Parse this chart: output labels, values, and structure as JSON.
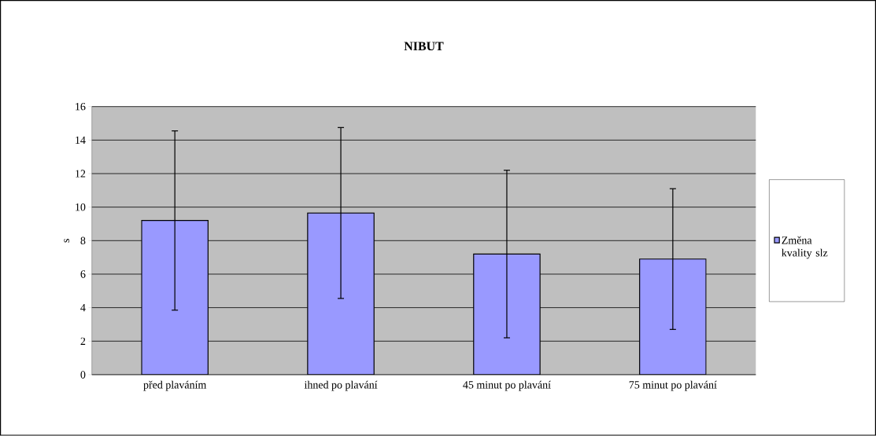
{
  "chart_data": {
    "type": "bar",
    "title": "NIBUT",
    "ylabel": "s",
    "categories": [
      "před plaváním",
      "ihned po plavání",
      "45 minut po plavání",
      "75 minut po plavání"
    ],
    "series": [
      {
        "name": "Změna kvality slz",
        "color": "#9999ff",
        "values": [
          9.2,
          9.65,
          7.2,
          6.9
        ],
        "errors": [
          5.35,
          5.1,
          5.0,
          4.2
        ]
      }
    ],
    "ylim": [
      0,
      16
    ],
    "yticks": [
      0,
      2,
      4,
      6,
      8,
      10,
      12,
      14,
      16
    ],
    "grid": "y",
    "legend": "right"
  }
}
